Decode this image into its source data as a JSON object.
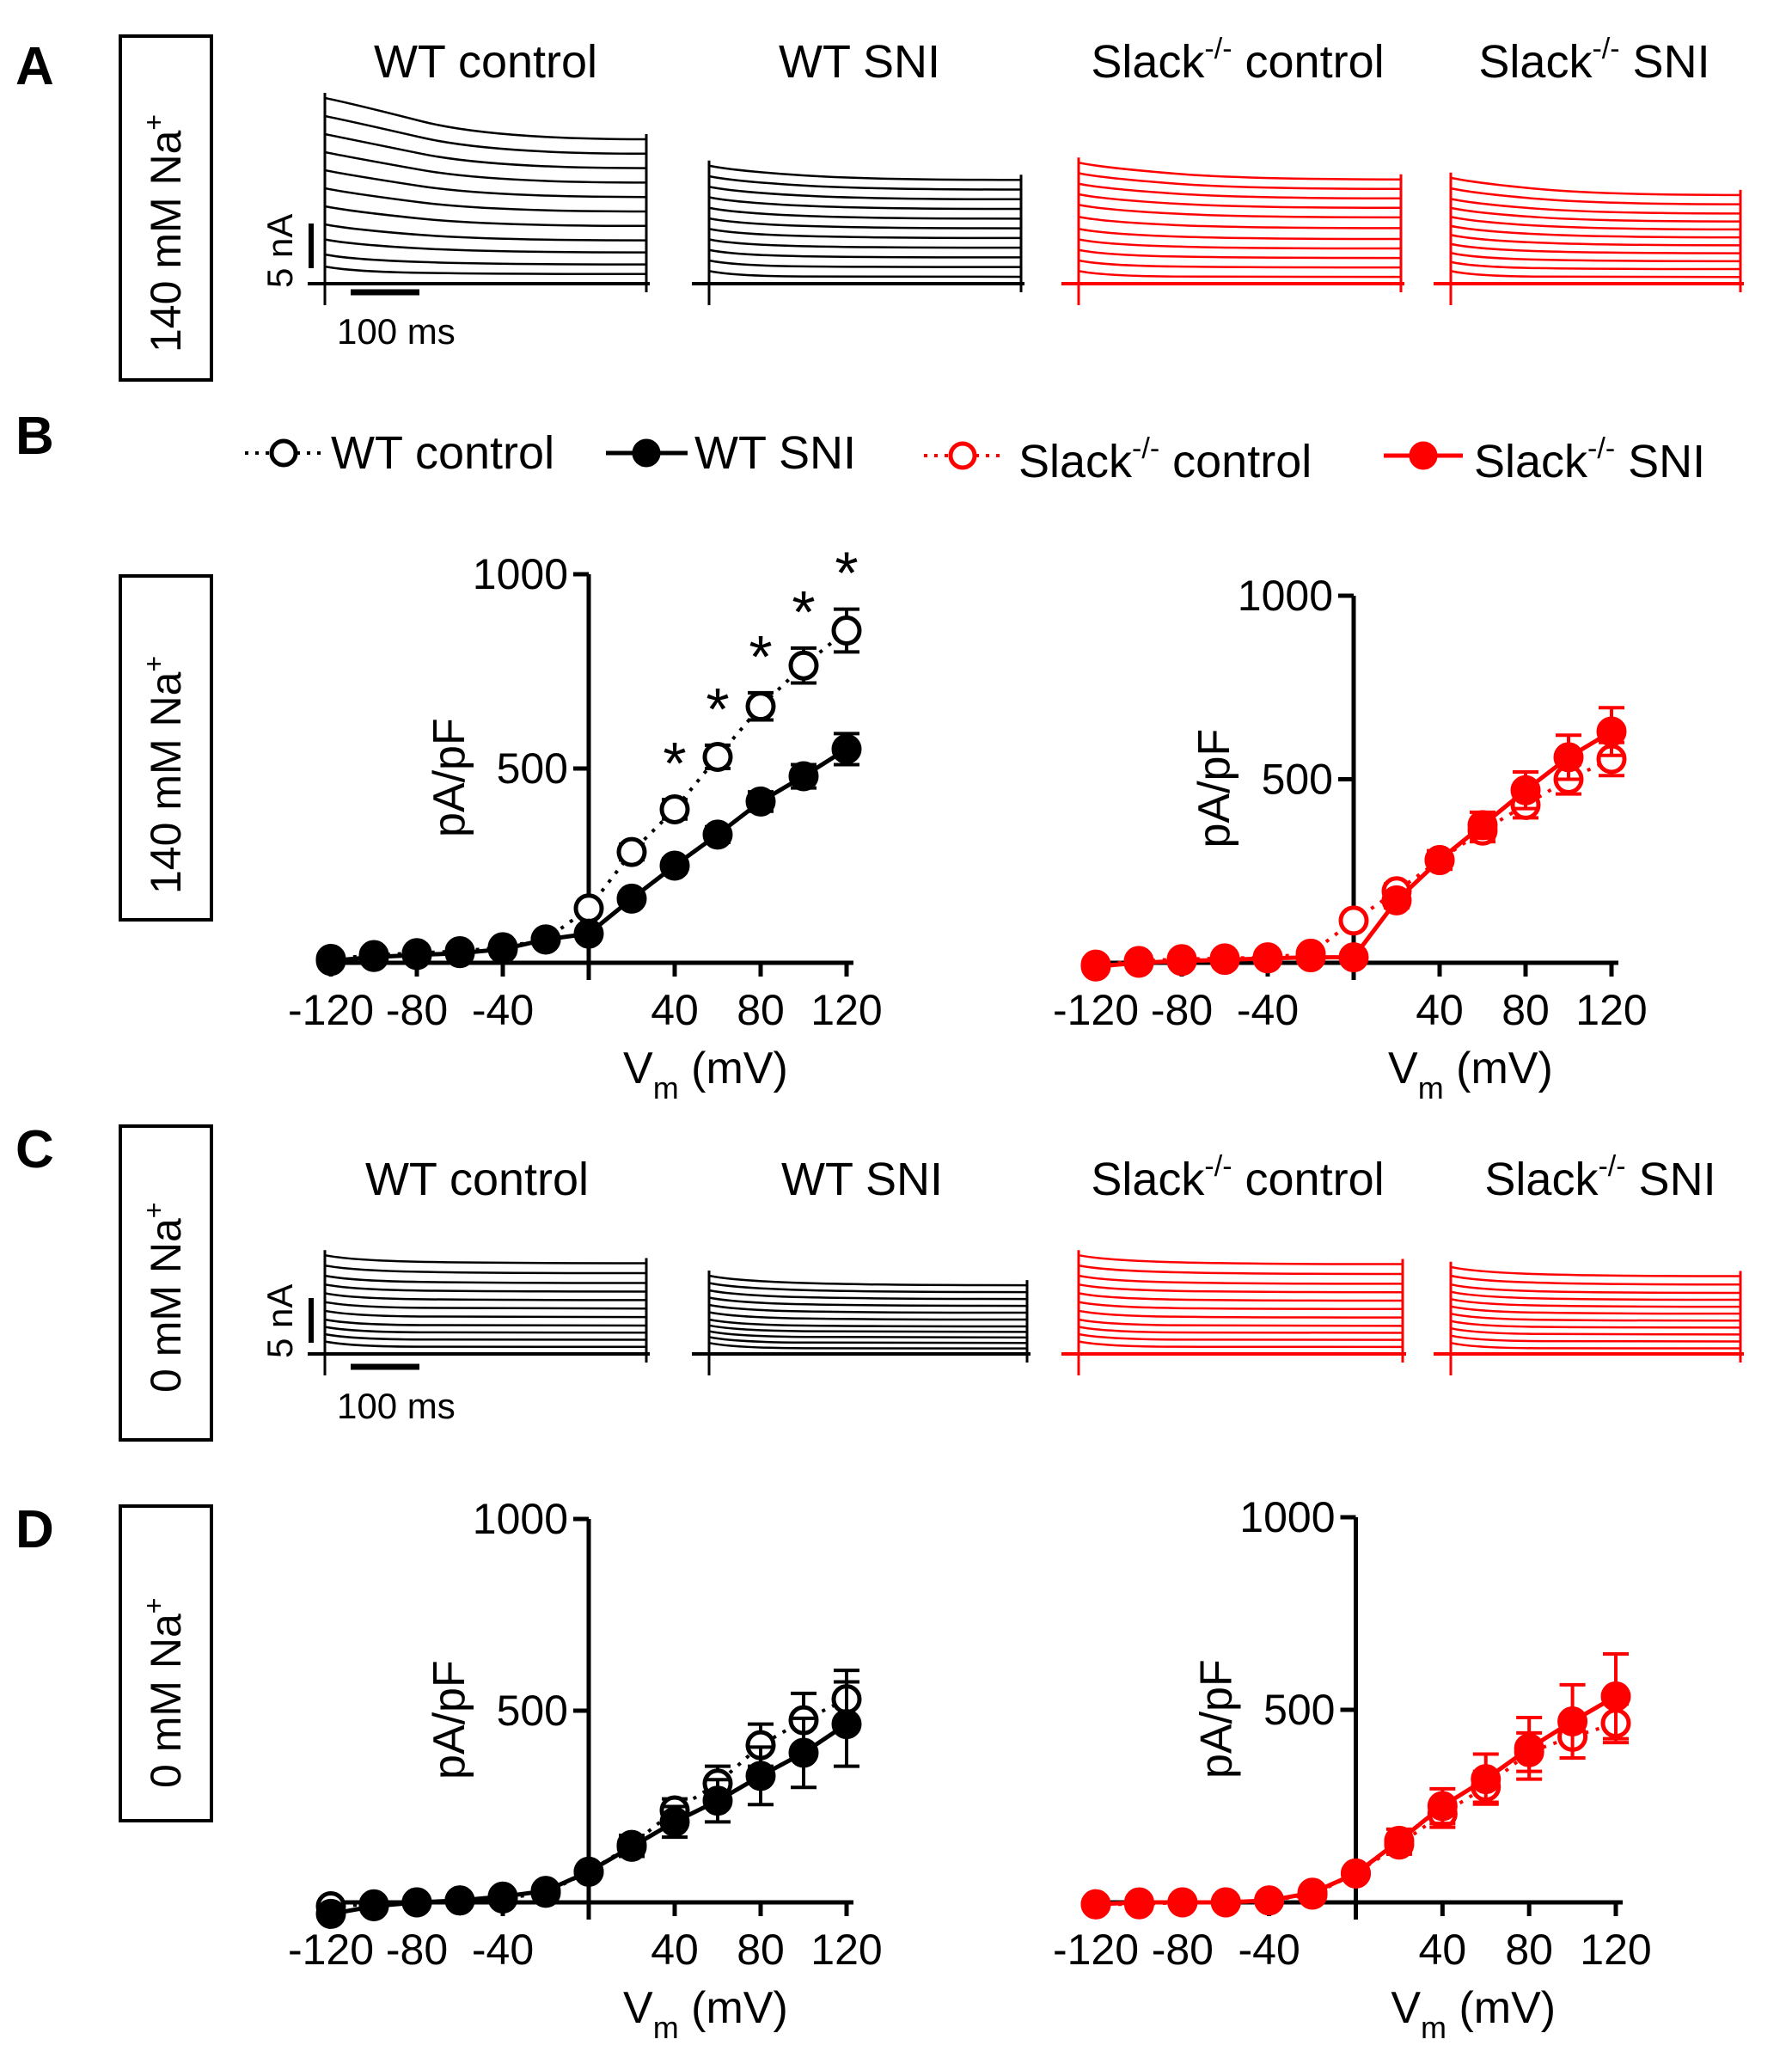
{
  "panels": {
    "A": {
      "letter": "A",
      "condition": "140 mM Na",
      "sup": "+"
    },
    "B": {
      "letter": "B",
      "condition": "140 mM Na",
      "sup": "+"
    },
    "C": {
      "letter": "C",
      "condition": "0 mM Na",
      "sup": "+"
    },
    "D": {
      "letter": "D",
      "condition": "0 mM Na",
      "sup": "+"
    }
  },
  "trace_titles": [
    {
      "main": "WT control",
      "sup": "",
      "tail": ""
    },
    {
      "main": "WT SNI",
      "sup": "",
      "tail": ""
    },
    {
      "main": "Slack",
      "sup": "-/-",
      "tail": " control"
    },
    {
      "main": "Slack",
      "sup": "-/-",
      "tail": " SNI"
    }
  ],
  "scale_bar": {
    "current": "5 nA",
    "time": "100 ms"
  },
  "legend": [
    {
      "main": "WT control",
      "sup": "",
      "tail": "",
      "color": "#000000",
      "filled": false,
      "dotted": true
    },
    {
      "main": "WT SNI",
      "sup": "",
      "tail": "",
      "color": "#000000",
      "filled": true,
      "dotted": false
    },
    {
      "main": "Slack",
      "sup": "-/-",
      "tail": " control",
      "color": "#ff0000",
      "filled": false,
      "dotted": true
    },
    {
      "main": "Slack",
      "sup": "-/-",
      "tail": " SNI",
      "color": "#ff0000",
      "filled": true,
      "dotted": false
    }
  ],
  "colors": {
    "wt": "#000000",
    "slack": "#ff0000"
  },
  "chart_data": [
    {
      "id": "B-wt",
      "type": "scatter",
      "panel": "B",
      "xlabel": "V",
      "xlabel_sub": "m",
      "xlabel_tail": " (mV)",
      "ylabel": "pA/pF",
      "xlim": [
        -120,
        120
      ],
      "ylim": [
        0,
        1000
      ],
      "xticks": [
        "-120",
        "-80",
        "-40",
        "40",
        "80",
        "120"
      ],
      "yticks": [
        "500",
        "1000"
      ],
      "x": [
        -120,
        -100,
        -80,
        -60,
        -40,
        -20,
        0,
        20,
        40,
        60,
        80,
        100,
        120
      ],
      "series": [
        {
          "name": "WT control",
          "color": "#000000",
          "filled": false,
          "values": [
            10,
            20,
            25,
            30,
            40,
            60,
            140,
            285,
            395,
            530,
            660,
            765,
            855
          ],
          "errors": [
            5,
            5,
            5,
            5,
            8,
            10,
            15,
            20,
            25,
            30,
            35,
            45,
            55
          ]
        },
        {
          "name": "WT SNI",
          "color": "#000000",
          "filled": true,
          "values": [
            5,
            15,
            20,
            25,
            35,
            60,
            75,
            165,
            250,
            330,
            415,
            480,
            550
          ],
          "errors": [
            5,
            5,
            5,
            5,
            8,
            10,
            12,
            15,
            18,
            20,
            25,
            30,
            40
          ]
        }
      ],
      "significance": {
        "label": "*",
        "x": [
          40,
          60,
          80,
          100,
          120
        ]
      }
    },
    {
      "id": "B-slack",
      "type": "scatter",
      "panel": "B",
      "xlabel": "V",
      "xlabel_sub": "m",
      "xlabel_tail": " (mV)",
      "ylabel": "pA/pF",
      "xlim": [
        -120,
        120
      ],
      "ylim": [
        0,
        1000
      ],
      "xticks": [
        "-120",
        "-80",
        "-40",
        "40",
        "80",
        "120"
      ],
      "yticks": [
        "500",
        "1000"
      ],
      "x": [
        -120,
        -100,
        -80,
        -60,
        -40,
        -20,
        0,
        20,
        40,
        60,
        80,
        100,
        120
      ],
      "series": [
        {
          "name": "Slack-/- control",
          "color": "#ff0000",
          "filled": false,
          "values": [
            -5,
            5,
            10,
            12,
            15,
            25,
            115,
            195,
            280,
            360,
            430,
            500,
            555
          ],
          "errors": [
            5,
            5,
            5,
            5,
            8,
            10,
            15,
            20,
            25,
            30,
            35,
            40,
            45
          ]
        },
        {
          "name": "Slack-/- SNI",
          "color": "#ff0000",
          "filled": true,
          "values": [
            -10,
            0,
            5,
            8,
            12,
            15,
            15,
            170,
            280,
            375,
            470,
            560,
            630
          ],
          "errors": [
            5,
            5,
            5,
            5,
            8,
            10,
            12,
            20,
            25,
            35,
            50,
            60,
            65
          ]
        }
      ]
    },
    {
      "id": "D-wt",
      "type": "scatter",
      "panel": "D",
      "xlabel": "V",
      "xlabel_sub": "m",
      "xlabel_tail": " (mV)",
      "ylabel": "pA/pF",
      "xlim": [
        -120,
        120
      ],
      "ylim": [
        0,
        1000
      ],
      "xticks": [
        "-120",
        "-80",
        "-40",
        "40",
        "80",
        "120"
      ],
      "yticks": [
        "500",
        "1000"
      ],
      "x": [
        -120,
        -100,
        -80,
        -60,
        -40,
        -20,
        0,
        20,
        40,
        60,
        80,
        100,
        120
      ],
      "series": [
        {
          "name": "WT control",
          "color": "#000000",
          "filled": false,
          "values": [
            -10,
            -5,
            0,
            5,
            10,
            25,
            80,
            150,
            240,
            310,
            410,
            475,
            530
          ],
          "errors": [
            5,
            5,
            5,
            5,
            8,
            10,
            15,
            25,
            30,
            45,
            55,
            70,
            75
          ]
        },
        {
          "name": "WT SNI",
          "color": "#000000",
          "filled": true,
          "values": [
            -30,
            -10,
            0,
            5,
            15,
            30,
            80,
            145,
            210,
            265,
            330,
            390,
            465
          ],
          "errors": [
            5,
            5,
            5,
            5,
            8,
            10,
            15,
            25,
            40,
            55,
            75,
            90,
            110
          ]
        }
      ]
    },
    {
      "id": "D-slack",
      "type": "scatter",
      "panel": "D",
      "xlabel": "V",
      "xlabel_sub": "m",
      "xlabel_tail": " (mV)",
      "ylabel": "pA/pF",
      "xlim": [
        -120,
        120
      ],
      "ylim": [
        0,
        1000
      ],
      "xticks": [
        "-120",
        "-80",
        "-40",
        "40",
        "80",
        "120"
      ],
      "yticks": [
        "500",
        "1000"
      ],
      "x": [
        -120,
        -100,
        -80,
        -60,
        -40,
        -20,
        0,
        20,
        40,
        60,
        80,
        100,
        120
      ],
      "series": [
        {
          "name": "Slack-/- control",
          "color": "#ff0000",
          "filled": false,
          "values": [
            -5,
            -5,
            0,
            0,
            5,
            20,
            75,
            150,
            230,
            300,
            390,
            430,
            465
          ],
          "errors": [
            5,
            5,
            5,
            5,
            8,
            10,
            15,
            25,
            35,
            40,
            50,
            55,
            50
          ]
        },
        {
          "name": "Slack-/- SNI",
          "color": "#ff0000",
          "filled": true,
          "values": [
            -5,
            0,
            0,
            0,
            5,
            25,
            75,
            160,
            250,
            320,
            400,
            470,
            535
          ],
          "errors": [
            5,
            5,
            5,
            5,
            8,
            10,
            15,
            30,
            45,
            65,
            80,
            95,
            110
          ]
        }
      ]
    }
  ],
  "trace_panels": [
    {
      "row": "A",
      "condition": "WT control",
      "color": "#000000",
      "levels": [
        0.08,
        0.16,
        0.26,
        0.36,
        0.48,
        0.6,
        0.72,
        0.84,
        0.96,
        1.08,
        1.2
      ],
      "peak_decay": 0.2
    },
    {
      "row": "A",
      "condition": "WT SNI",
      "color": "#000000",
      "levels": [
        0.05,
        0.12,
        0.19,
        0.26,
        0.33,
        0.4,
        0.47,
        0.54,
        0.61,
        0.68,
        0.75
      ],
      "peak_decay": 0.08
    },
    {
      "row": "A",
      "condition": "Slack-/- control",
      "color": "#ff0000",
      "levels": [
        0.05,
        0.12,
        0.19,
        0.26,
        0.33,
        0.41,
        0.49,
        0.56,
        0.63,
        0.7,
        0.77
      ],
      "peak_decay": 0.1
    },
    {
      "row": "A",
      "condition": "Slack-/- SNI",
      "color": "#ff0000",
      "levels": [
        0.05,
        0.11,
        0.17,
        0.23,
        0.29,
        0.35,
        0.41,
        0.47,
        0.53,
        0.6,
        0.67
      ],
      "peak_decay": 0.12
    },
    {
      "row": "C",
      "condition": "WT control",
      "color": "#000000",
      "levels": [
        0.05,
        0.1,
        0.15,
        0.2,
        0.26,
        0.32,
        0.38,
        0.44,
        0.5,
        0.57,
        0.64
      ],
      "peak_decay": 0.03
    },
    {
      "row": "C",
      "condition": "WT SNI",
      "color": "#000000",
      "levels": [
        0.04,
        0.08,
        0.12,
        0.16,
        0.2,
        0.25,
        0.3,
        0.35,
        0.4,
        0.45,
        0.5
      ],
      "peak_decay": 0.06
    },
    {
      "row": "C",
      "condition": "Slack-/- control",
      "color": "#ff0000",
      "levels": [
        0.05,
        0.1,
        0.15,
        0.2,
        0.26,
        0.32,
        0.38,
        0.44,
        0.5,
        0.57,
        0.64
      ],
      "peak_decay": 0.04
    },
    {
      "row": "C",
      "condition": "Slack-/- SNI",
      "color": "#ff0000",
      "levels": [
        0.04,
        0.09,
        0.14,
        0.19,
        0.24,
        0.29,
        0.34,
        0.39,
        0.44,
        0.5,
        0.56
      ],
      "peak_decay": 0.05
    }
  ]
}
